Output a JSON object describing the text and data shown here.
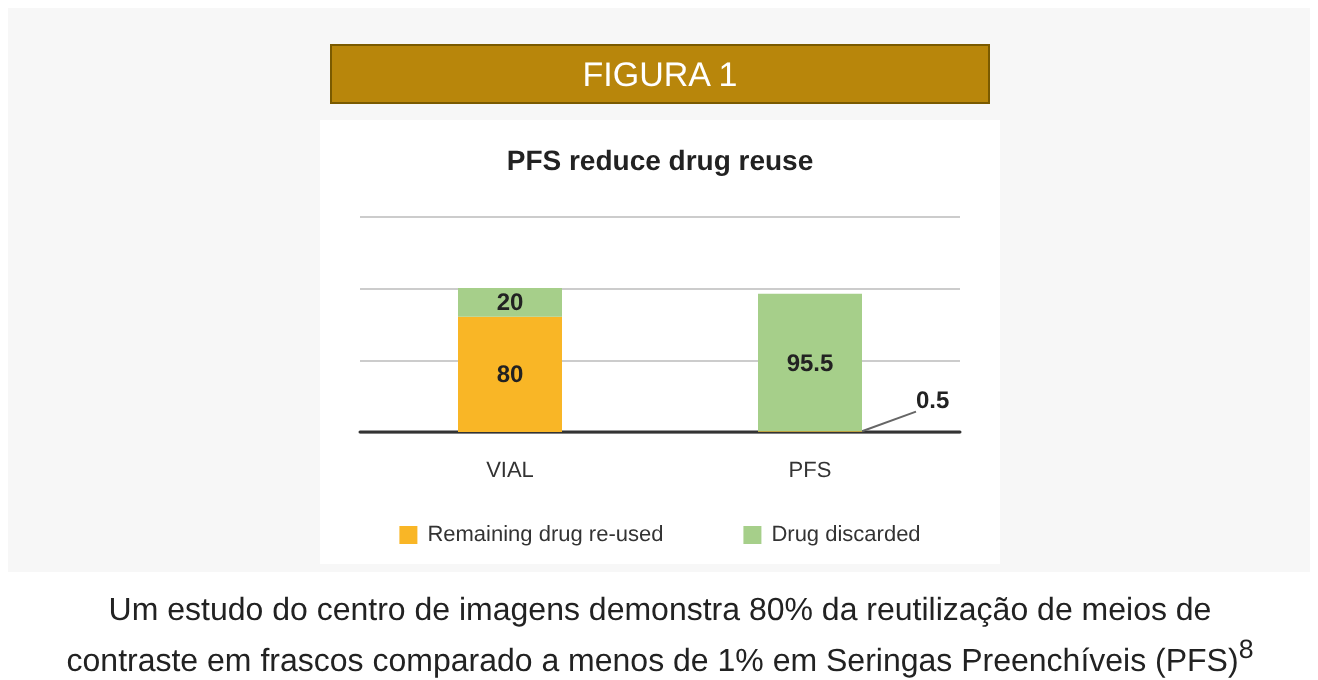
{
  "chart_data": {
    "type": "bar",
    "title": "FIGURA 1",
    "subtitle": "PFS reduce drug reuse",
    "categories": [
      "VIAL",
      "PFS"
    ],
    "series": [
      {
        "name": "Remaining drug re-used",
        "color": "#f9b626",
        "values": [
          80,
          0.5
        ]
      },
      {
        "name": "Drug discarded",
        "color": "#a6cf8a",
        "values": [
          20,
          95.5
        ]
      }
    ],
    "stacked": true,
    "data_labels": true,
    "ylim": [
      0,
      150
    ],
    "yticks": [
      {
        "value": 0,
        "label": null
      },
      {
        "value": 50,
        "label": null
      },
      {
        "value": 100,
        "label": null
      },
      {
        "value": 150,
        "label": null
      }
    ],
    "tick_labels": "x",
    "grid": "y",
    "legend": "bottom",
    "annotations": [
      "Um estudo do centro de imagens demonstra 80% da reutilização de meios de contraste em frascos comparado a menos de 1% em Seringas Preenchíveis (PFS)$^{8}$"
    ]
  }
}
